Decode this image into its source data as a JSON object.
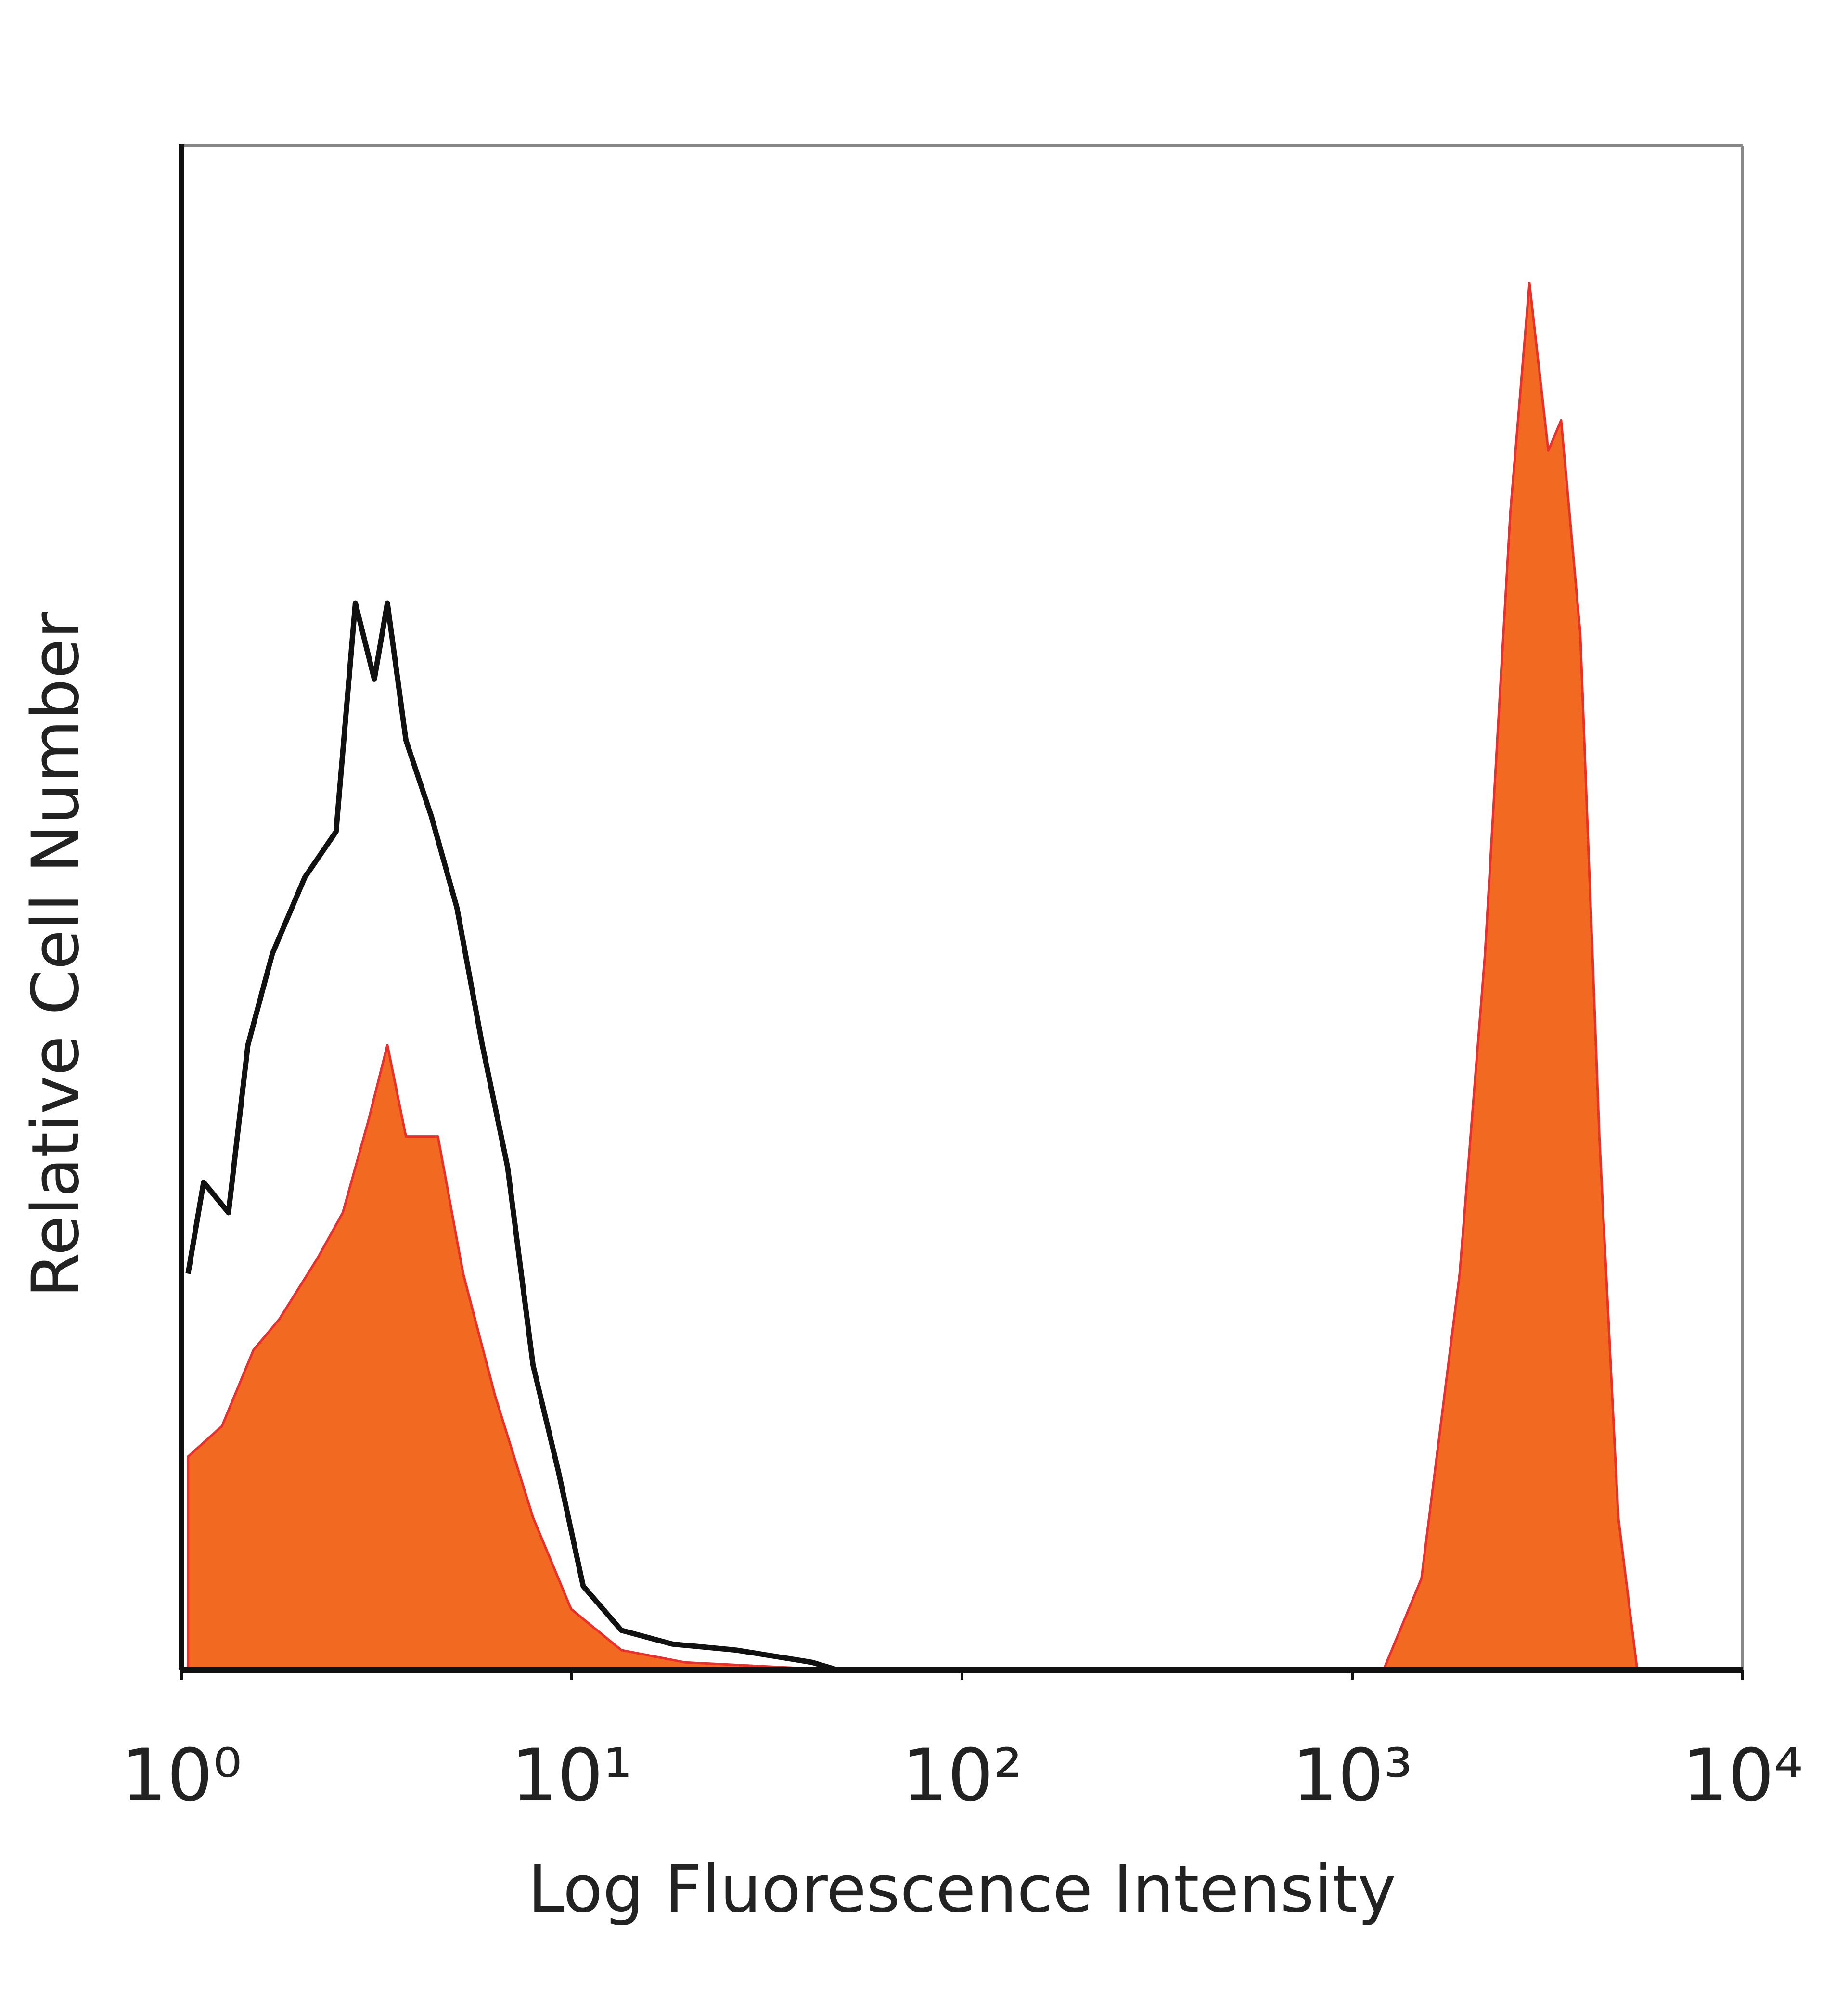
{
  "chart_data": {
    "type": "histogram-overlay",
    "xlabel": "Log Fluorescence Intensity",
    "ylabel": "Relative Cell Number",
    "xscale": "log",
    "xlim": [
      1,
      10000
    ],
    "xticks": [
      {
        "value": 1,
        "label": "10⁰"
      },
      {
        "value": 10,
        "label": "10¹"
      },
      {
        "value": 100,
        "label": "10²"
      },
      {
        "value": 1000,
        "label": "10³"
      },
      {
        "value": 10000,
        "label": "10⁴"
      }
    ],
    "ylim": [
      0,
      100
    ],
    "series": [
      {
        "color": "#f26a21",
        "edge_color": "#e8312a",
        "filled": true,
        "x": [
          1.04,
          1.27,
          1.53,
          1.78,
          2.23,
          2.59,
          3.01,
          3.37,
          3.76,
          4.54,
          5.27,
          6.36,
          7.96,
          9.96,
          13.4,
          19.5,
          48.0,
          null,
          1202,
          1504,
          1884,
          2188,
          2541,
          2843,
          3178,
          3428,
          3837,
          4295,
          4801,
          5370
        ],
        "values": [
          14,
          16,
          21,
          23,
          27,
          30,
          36,
          41,
          35,
          35,
          26,
          18,
          10,
          4,
          1.3,
          0.5,
          0,
          null,
          0,
          6,
          26,
          47,
          76,
          91,
          80,
          82,
          68,
          35,
          10,
          0
        ]
      },
      {
        "color": "#111111",
        "filled": false,
        "x": [
          1.04,
          1.14,
          1.32,
          1.48,
          1.71,
          2.07,
          2.49,
          2.79,
          3.12,
          3.37,
          3.76,
          4.37,
          5.08,
          5.9,
          6.85,
          7.96,
          9.25,
          10.7,
          13.4,
          18.1,
          26.4,
          41.3,
          48.0
        ],
        "values": [
          26,
          32,
          30,
          41,
          47,
          52,
          55,
          70,
          65,
          70,
          61,
          56,
          50,
          41,
          33,
          20,
          13,
          5.5,
          2.6,
          1.7,
          1.3,
          0.5,
          0
        ]
      }
    ]
  }
}
